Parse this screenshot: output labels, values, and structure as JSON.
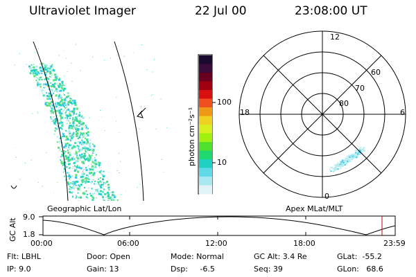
{
  "header": {
    "instrument": "Ultraviolet Imager",
    "date": "22 Jul 00",
    "time": "23:08:00 UT"
  },
  "geo_panel": {
    "label": "Geographic Lat/Lon"
  },
  "colorbar": {
    "unit_label": "photon cm⁻²s⁻¹",
    "ticks": [
      "100",
      "10"
    ]
  },
  "polar_plot": {
    "label": "Apex MLat/MLT",
    "mlt_labels": {
      "top": "12",
      "left": "18",
      "right": "6",
      "bottom": "0"
    },
    "lat_labels": [
      "60",
      "70",
      "80"
    ]
  },
  "timeline": {
    "ylabel": "GC Alt",
    "yticks": [
      "9.0",
      "1.8"
    ],
    "xticks": [
      "00:00",
      "06:00",
      "12:00",
      "18:00",
      "23:59"
    ]
  },
  "info": {
    "flt": "Flt: LBHL",
    "ip": "IP:  9.0",
    "door": "Door: Open",
    "gain": "Gain: 13",
    "mode": "Mode: Normal",
    "dsp": "Dsp:     -6.5",
    "gcalt": "GC Alt: 3.4 Re",
    "seq": "Seq: 39",
    "glat": "GLat:  -55.2",
    "glon": "GLon:   68.6"
  },
  "colors": {
    "aurora_main": "#3fe0a0",
    "aurora_cyan": "#30c8e8",
    "aurora_green": "#58e070",
    "polar_aurora": "#b8ecef",
    "marker": "#c00000"
  }
}
